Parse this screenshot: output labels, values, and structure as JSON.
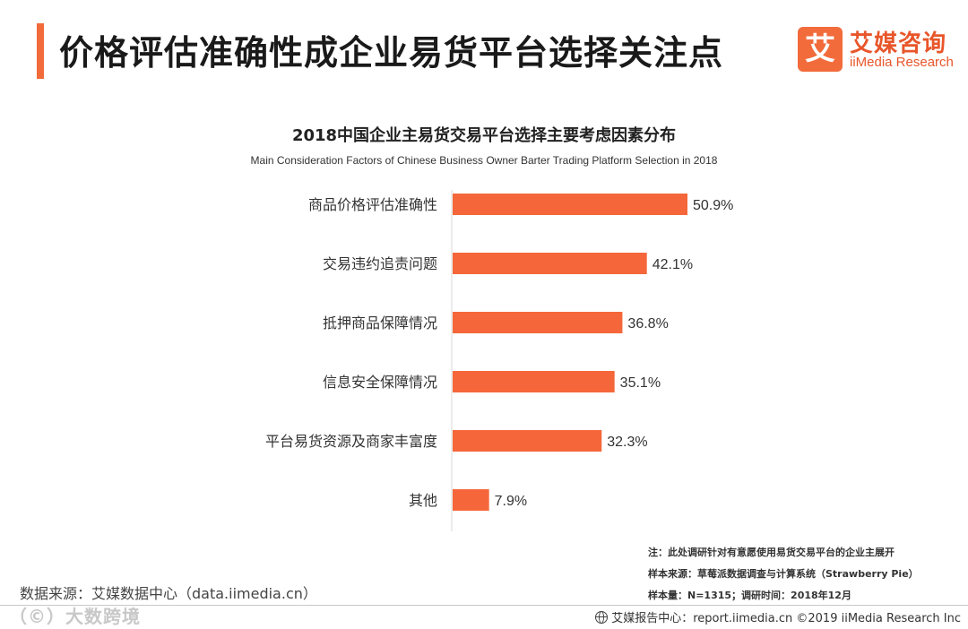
{
  "header": {
    "title": "价格评估准确性成企业易货平台选择关注点",
    "accent_color": "#f26b3a"
  },
  "logo": {
    "mark": "艾",
    "cn": "艾媒咨询",
    "en": "iiMedia Research",
    "color": "#e8562a"
  },
  "chart_data": {
    "type": "bar",
    "orientation": "horizontal",
    "title": "2018中国企业主易货交易平台选择主要考虑因素分布",
    "subtitle": "Main Consideration Factors of Chinese Business Owner Barter Trading Platform Selection in 2018",
    "categories": [
      "商品价格评估准确性",
      "交易违约追责问题",
      "抵押商品保障情况",
      "信息安全保障情况",
      "平台易货资源及商家丰富度",
      "其他"
    ],
    "values": [
      50.9,
      42.1,
      36.8,
      35.1,
      32.3,
      7.9
    ],
    "value_labels": [
      "50.9%",
      "42.1%",
      "36.8%",
      "35.1%",
      "32.3%",
      "7.9%"
    ],
    "unit": "%",
    "xlim": [
      0,
      100
    ],
    "grid": false,
    "legend": "none",
    "bar_color": "#f5673a"
  },
  "notes": {
    "note": "注：此处调研针对有意愿使用易货交易平台的企业主展开",
    "sample_source": "样本来源：草莓派数据调查与计算系统（Strawberry  Pie）",
    "sample_size": "样本量：N=1315；调研时间：2018年12月"
  },
  "source": "数据来源：艾媒数据中心（data.iimedia.cn）",
  "watermark": "（©）大数跨境",
  "footer": "艾媒报告中心：report.iimedia.cn  ©2019  iiMedia Research  Inc"
}
